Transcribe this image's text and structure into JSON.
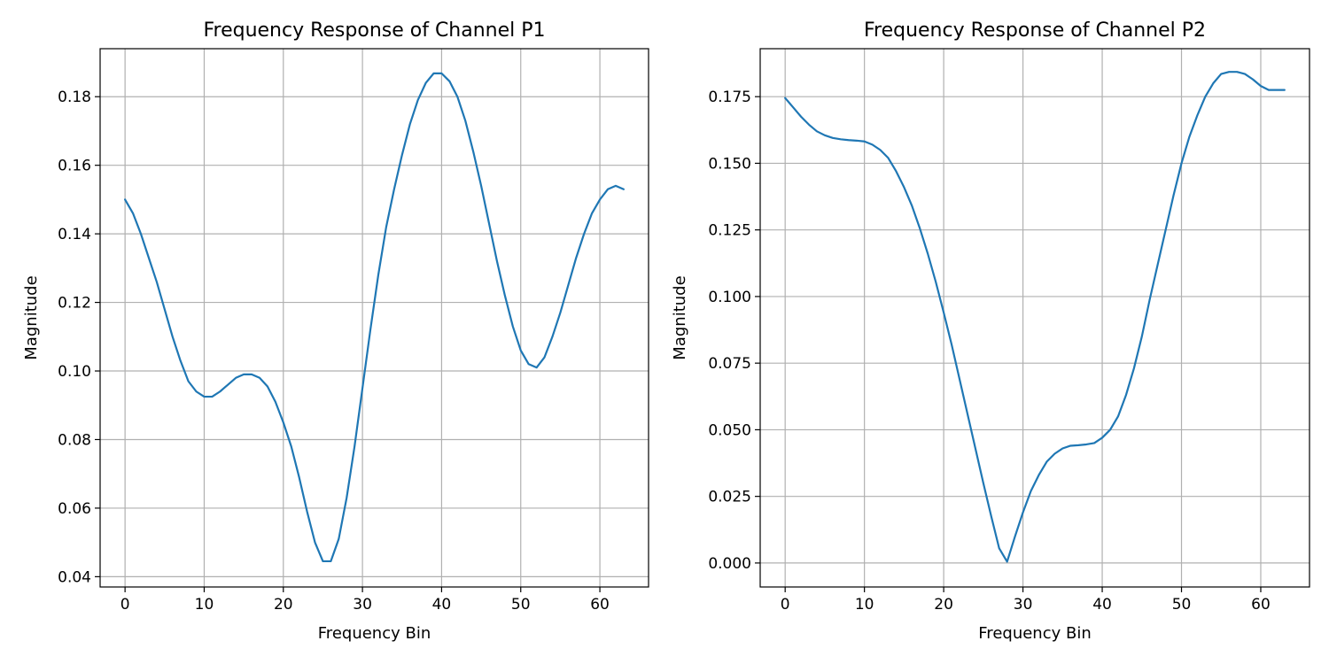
{
  "chart_data": [
    {
      "type": "line",
      "title": "Frequency Response of Channel P1",
      "xlabel": "Frequency Bin",
      "ylabel": "Magnitude",
      "xlim": [
        -3.15,
        66.15
      ],
      "ylim": [
        0.037,
        0.194
      ],
      "xticks": [
        0,
        10,
        20,
        30,
        40,
        50,
        60
      ],
      "xtick_labels": [
        "0",
        "10",
        "20",
        "30",
        "40",
        "50",
        "60"
      ],
      "yticks": [
        0.04,
        0.06,
        0.08,
        0.1,
        0.12,
        0.14,
        0.16,
        0.18
      ],
      "ytick_labels": [
        "0.04",
        "0.06",
        "0.08",
        "0.10",
        "0.12",
        "0.14",
        "0.16",
        "0.18"
      ],
      "grid": true,
      "color": "#1f77b4",
      "series": [
        {
          "x": [
            0,
            1,
            2,
            3,
            4,
            5,
            6,
            7,
            8,
            9,
            10,
            11,
            12,
            13,
            14,
            15,
            16,
            17,
            18,
            19,
            20,
            21,
            22,
            23,
            24,
            25,
            26,
            27,
            28,
            29,
            30,
            31,
            32,
            33,
            34,
            35,
            36,
            37,
            38,
            39,
            40,
            41,
            42,
            43,
            44,
            45,
            46,
            47,
            48,
            49,
            50,
            51,
            52,
            53,
            54,
            55,
            56,
            57,
            58,
            59,
            60,
            61,
            62,
            63
          ],
          "values": [
            0.15,
            0.146,
            0.14,
            0.133,
            0.126,
            0.118,
            0.11,
            0.103,
            0.097,
            0.094,
            0.0925,
            0.0925,
            0.094,
            0.096,
            0.098,
            0.099,
            0.099,
            0.098,
            0.0955,
            0.091,
            0.085,
            0.078,
            0.069,
            0.059,
            0.05,
            0.0445,
            0.0445,
            0.051,
            0.063,
            0.078,
            0.095,
            0.112,
            0.128,
            0.142,
            0.153,
            0.163,
            0.172,
            0.179,
            0.184,
            0.1868,
            0.1868,
            0.1845,
            0.18,
            0.173,
            0.164,
            0.154,
            0.143,
            0.132,
            0.122,
            0.113,
            0.106,
            0.102,
            0.101,
            0.104,
            0.11,
            0.117,
            0.125,
            0.133,
            0.14,
            0.146,
            0.15,
            0.153,
            0.154,
            0.153
          ]
        }
      ]
    },
    {
      "type": "line",
      "title": "Frequency Response of Channel P2",
      "xlabel": "Frequency Bin",
      "ylabel": "Magnitude",
      "xlim": [
        -3.15,
        66.15
      ],
      "ylim": [
        -0.009,
        0.193
      ],
      "xticks": [
        0,
        10,
        20,
        30,
        40,
        50,
        60
      ],
      "xtick_labels": [
        "0",
        "10",
        "20",
        "30",
        "40",
        "50",
        "60"
      ],
      "yticks": [
        0.0,
        0.025,
        0.05,
        0.075,
        0.1,
        0.125,
        0.15,
        0.175
      ],
      "ytick_labels": [
        "0.000",
        "0.025",
        "0.050",
        "0.075",
        "0.100",
        "0.125",
        "0.150",
        "0.175"
      ],
      "grid": true,
      "color": "#1f77b4",
      "series": [
        {
          "x": [
            0,
            1,
            2,
            3,
            4,
            5,
            6,
            7,
            8,
            9,
            10,
            11,
            12,
            13,
            14,
            15,
            16,
            17,
            18,
            19,
            20,
            21,
            22,
            23,
            24,
            25,
            26,
            27,
            28,
            29,
            30,
            31,
            32,
            33,
            34,
            35,
            36,
            37,
            38,
            39,
            40,
            41,
            42,
            43,
            44,
            45,
            46,
            47,
            48,
            49,
            50,
            51,
            52,
            53,
            54,
            55,
            56,
            57,
            58,
            59,
            60,
            61,
            62,
            63
          ],
          "values": [
            0.1745,
            0.171,
            0.1675,
            0.1645,
            0.162,
            0.1605,
            0.1595,
            0.159,
            0.1587,
            0.1585,
            0.1582,
            0.157,
            0.155,
            0.152,
            0.147,
            0.141,
            0.134,
            0.1255,
            0.116,
            0.1055,
            0.094,
            0.082,
            0.069,
            0.056,
            0.043,
            0.03,
            0.0175,
            0.0055,
            0.0005,
            0.01,
            0.019,
            0.027,
            0.033,
            0.038,
            0.041,
            0.043,
            0.044,
            0.0442,
            0.0445,
            0.045,
            0.047,
            0.05,
            0.055,
            0.063,
            0.073,
            0.085,
            0.099,
            0.112,
            0.125,
            0.138,
            0.15,
            0.16,
            0.168,
            0.175,
            0.18,
            0.1835,
            0.1843,
            0.1843,
            0.1835,
            0.1815,
            0.179,
            0.1775,
            0.1775,
            0.1775
          ]
        }
      ]
    }
  ]
}
